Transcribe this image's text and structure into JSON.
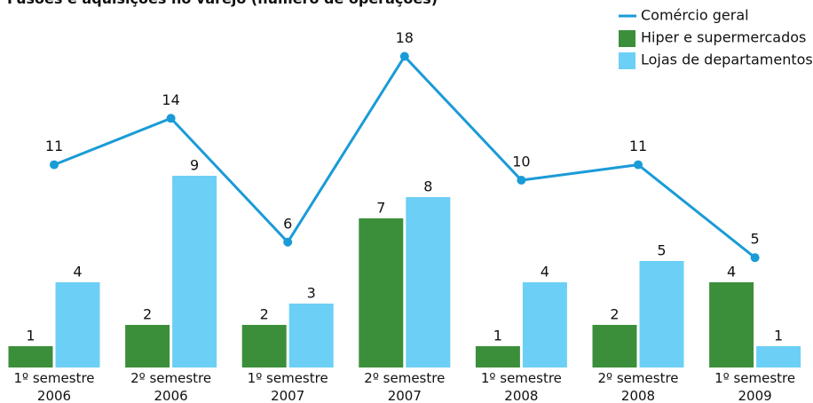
{
  "chart_data": {
    "type": "bar-line",
    "title": "Fusões e aquisições no varejo (número de operações)",
    "categories": [
      "1º semestre 2006",
      "2º semestre 2006",
      "1º semestre 2007",
      "2º semestre 2007",
      "1º semestre 2008",
      "2º semestre 2008",
      "1º semestre 2009"
    ],
    "series": [
      {
        "name": "Comércio geral",
        "color": "#1a9bd7",
        "type": "line",
        "axis": "y2",
        "values": [
          11,
          14,
          6,
          18,
          10,
          11,
          5
        ]
      },
      {
        "name": "Hiper e supermercados",
        "color": "#3c8f3a",
        "type": "bar",
        "values": [
          1,
          2,
          2,
          7,
          1,
          2,
          4
        ]
      },
      {
        "name": "Lojas de departamentos",
        "color": "#6ccff6",
        "type": "bar",
        "values": [
          4,
          9,
          3,
          8,
          4,
          5,
          1
        ]
      }
    ],
    "ylim": [
      0,
      17
    ],
    "y2lim": [
      -2.1,
      21.3
    ],
    "legend": "top-right"
  }
}
